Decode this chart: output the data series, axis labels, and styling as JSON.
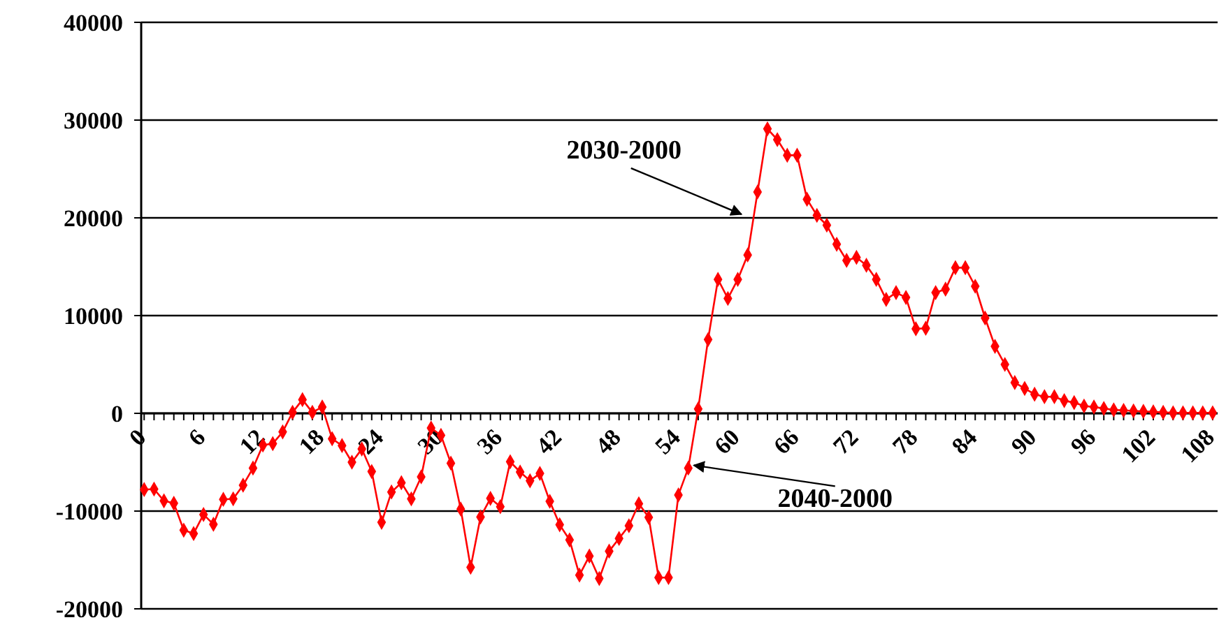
{
  "chart_data": {
    "type": "line",
    "x": [
      0,
      1,
      2,
      3,
      4,
      5,
      6,
      7,
      8,
      9,
      10,
      11,
      12,
      13,
      14,
      15,
      16,
      17,
      18,
      19,
      20,
      21,
      22,
      23,
      24,
      25,
      26,
      27,
      28,
      29,
      30,
      31,
      32,
      33,
      34,
      35,
      36,
      37,
      38,
      39,
      40,
      41,
      42,
      43,
      44,
      45,
      46,
      47,
      48,
      49,
      50,
      51,
      52,
      53,
      54,
      55,
      56,
      57,
      58,
      59,
      60,
      61,
      62,
      63,
      64,
      65,
      66,
      67,
      68,
      69,
      70,
      71,
      72,
      73,
      74,
      75,
      76,
      77,
      78,
      79,
      80,
      81,
      82,
      83,
      84,
      85,
      86,
      87,
      88,
      89,
      90,
      91,
      92,
      93,
      94,
      95,
      96,
      97,
      98,
      99,
      100,
      101,
      102,
      103,
      104,
      105,
      106,
      107,
      108
    ],
    "series": [
      {
        "color": "#ff0000",
        "values": [
          -7800,
          -7750,
          -8950,
          -9200,
          -11950,
          -12300,
          -10350,
          -11350,
          -8800,
          -8750,
          -7350,
          -5600,
          -3250,
          -3100,
          -1900,
          100,
          1400,
          100,
          650,
          -2600,
          -3300,
          -5000,
          -3650,
          -5950,
          -11150,
          -8050,
          -7100,
          -8750,
          -6500,
          -1500,
          -2250,
          -5100,
          -9800,
          -15750,
          -10600,
          -8700,
          -9550,
          -4950,
          -6000,
          -6900,
          -6150,
          -9000,
          -11400,
          -12950,
          -16550,
          -14600,
          -16900,
          -14100,
          -12800,
          -11500,
          -9250,
          -10650,
          -16800,
          -16800,
          -8350,
          -5600,
          450,
          7550,
          13700,
          11750,
          13700,
          16200,
          22650,
          29100,
          28000,
          26400,
          26400,
          21900,
          20250,
          19250,
          17300,
          15650,
          15950,
          15150,
          13700,
          11650,
          12350,
          11850,
          8650,
          8700,
          12350,
          12700,
          14900,
          14900,
          13000,
          9750,
          6850,
          5000,
          3150,
          2550,
          1950,
          1700,
          1700,
          1300,
          1100,
          750,
          650,
          500,
          350,
          300,
          250,
          200,
          150,
          100,
          50,
          50,
          50,
          50,
          50
        ]
      }
    ],
    "xlim": [
      -0.3,
      108.5
    ],
    "xticks": [
      0,
      {
        "value": 1,
        "label": null
      },
      {
        "value": 2,
        "label": null
      },
      {
        "value": 3,
        "label": null
      },
      {
        "value": 4,
        "label": null
      },
      {
        "value": 5,
        "label": null
      },
      6,
      {
        "value": 7,
        "label": null
      },
      {
        "value": 8,
        "label": null
      },
      {
        "value": 9,
        "label": null
      },
      {
        "value": 10,
        "label": null
      },
      {
        "value": 11,
        "label": null
      },
      12,
      {
        "value": 13,
        "label": null
      },
      {
        "value": 14,
        "label": null
      },
      {
        "value": 15,
        "label": null
      },
      {
        "value": 16,
        "label": null
      },
      {
        "value": 17,
        "label": null
      },
      18,
      {
        "value": 19,
        "label": null
      },
      {
        "value": 20,
        "label": null
      },
      {
        "value": 21,
        "label": null
      },
      {
        "value": 22,
        "label": null
      },
      {
        "value": 23,
        "label": null
      },
      24,
      {
        "value": 25,
        "label": null
      },
      {
        "value": 26,
        "label": null
      },
      {
        "value": 27,
        "label": null
      },
      {
        "value": 28,
        "label": null
      },
      {
        "value": 29,
        "label": null
      },
      30,
      {
        "value": 31,
        "label": null
      },
      {
        "value": 32,
        "label": null
      },
      {
        "value": 33,
        "label": null
      },
      {
        "value": 34,
        "label": null
      },
      {
        "value": 35,
        "label": null
      },
      36,
      {
        "value": 37,
        "label": null
      },
      {
        "value": 38,
        "label": null
      },
      {
        "value": 39,
        "label": null
      },
      {
        "value": 40,
        "label": null
      },
      {
        "value": 41,
        "label": null
      },
      42,
      {
        "value": 43,
        "label": null
      },
      {
        "value": 44,
        "label": null
      },
      {
        "value": 45,
        "label": null
      },
      {
        "value": 46,
        "label": null
      },
      {
        "value": 47,
        "label": null
      },
      48,
      {
        "value": 49,
        "label": null
      },
      {
        "value": 50,
        "label": null
      },
      {
        "value": 51,
        "label": null
      },
      {
        "value": 52,
        "label": null
      },
      {
        "value": 53,
        "label": null
      },
      54,
      {
        "value": 55,
        "label": null
      },
      {
        "value": 56,
        "label": null
      },
      {
        "value": 57,
        "label": null
      },
      {
        "value": 58,
        "label": null
      },
      {
        "value": 59,
        "label": null
      },
      60,
      {
        "value": 61,
        "label": null
      },
      {
        "value": 62,
        "label": null
      },
      {
        "value": 63,
        "label": null
      },
      {
        "value": 64,
        "label": null
      },
      {
        "value": 65,
        "label": null
      },
      66,
      {
        "value": 67,
        "label": null
      },
      {
        "value": 68,
        "label": null
      },
      {
        "value": 69,
        "label": null
      },
      {
        "value": 70,
        "label": null
      },
      {
        "value": 71,
        "label": null
      },
      72,
      {
        "value": 73,
        "label": null
      },
      {
        "value": 74,
        "label": null
      },
      {
        "value": 75,
        "label": null
      },
      {
        "value": 76,
        "label": null
      },
      {
        "value": 77,
        "label": null
      },
      78,
      {
        "value": 79,
        "label": null
      },
      {
        "value": 80,
        "label": null
      },
      {
        "value": 81,
        "label": null
      },
      {
        "value": 82,
        "label": null
      },
      {
        "value": 83,
        "label": null
      },
      84,
      {
        "value": 85,
        "label": null
      },
      {
        "value": 86,
        "label": null
      },
      {
        "value": 87,
        "label": null
      },
      {
        "value": 88,
        "label": null
      },
      {
        "value": 89,
        "label": null
      },
      90,
      {
        "value": 91,
        "label": null
      },
      {
        "value": 92,
        "label": null
      },
      {
        "value": 93,
        "label": null
      },
      {
        "value": 94,
        "label": null
      },
      {
        "value": 95,
        "label": null
      },
      96,
      {
        "value": 97,
        "label": null
      },
      {
        "value": 98,
        "label": null
      },
      {
        "value": 99,
        "label": null
      },
      {
        "value": 100,
        "label": null
      },
      {
        "value": 101,
        "label": null
      },
      102,
      {
        "value": 103,
        "label": null
      },
      {
        "value": 104,
        "label": null
      },
      {
        "value": 105,
        "label": null
      },
      {
        "value": 106,
        "label": null
      },
      {
        "value": 107,
        "label": null
      },
      108
    ],
    "ylim": [
      -20000,
      40000
    ],
    "yticks": [
      -20000,
      -10000,
      0,
      10000,
      20000,
      30000,
      40000
    ],
    "grid": "y",
    "marker": "diamond",
    "line_style": "solid",
    "annotations": [
      {
        "text": "2030-2000",
        "x": 61.5,
        "y": 19800
      },
      {
        "text": "2040-2000",
        "x": 55,
        "y": -5600
      }
    ]
  }
}
